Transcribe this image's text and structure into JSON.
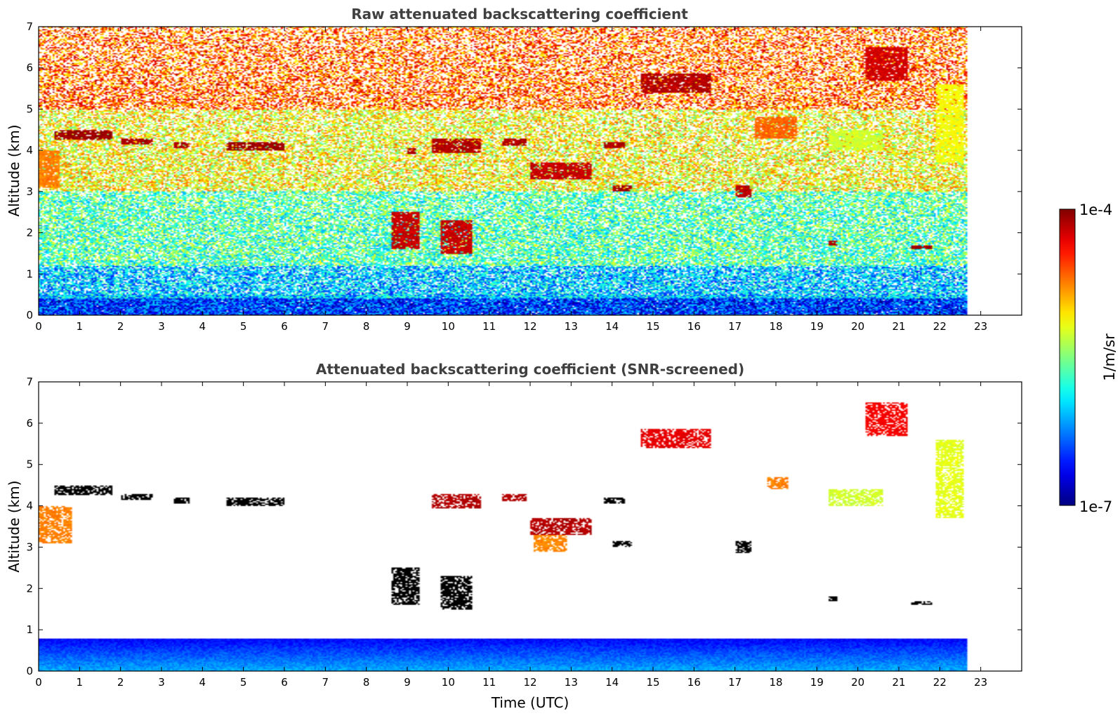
{
  "chart_data": [
    {
      "type": "heatmap",
      "title": "Raw attenuated backscattering coefficient",
      "xlabel": "",
      "ylabel": "Altitude (km)",
      "xlim": [
        0,
        24
      ],
      "ylim": [
        0,
        7
      ],
      "x_ticks": [
        "0",
        "1",
        "2",
        "3",
        "4",
        "5",
        "6",
        "7",
        "8",
        "9",
        "10",
        "11",
        "12",
        "13",
        "14",
        "15",
        "16",
        "17",
        "18",
        "19",
        "20",
        "21",
        "22",
        "23"
      ],
      "y_ticks": [
        "0",
        "1",
        "2",
        "3",
        "4",
        "5",
        "6",
        "7"
      ],
      "data_end_time": 22.65,
      "background_noise": [
        {
          "alt_range": [
            0,
            0.4
          ],
          "level": 0.18
        },
        {
          "alt_range": [
            0.4,
            1.2
          ],
          "level": 0.32
        },
        {
          "alt_range": [
            1.2,
            3.0
          ],
          "level": 0.45
        },
        {
          "alt_range": [
            3.0,
            5.0
          ],
          "level": 0.62
        },
        {
          "alt_range": [
            5.0,
            7.0
          ],
          "level": 0.78
        }
      ],
      "features": [
        {
          "t": [
            0.4,
            1.8
          ],
          "alt": [
            4.25,
            4.5
          ],
          "level": 0.97
        },
        {
          "t": [
            2.0,
            2.8
          ],
          "alt": [
            4.15,
            4.3
          ],
          "level": 0.96
        },
        {
          "t": [
            3.3,
            3.7
          ],
          "alt": [
            4.05,
            4.2
          ],
          "level": 0.96
        },
        {
          "t": [
            4.6,
            6.0
          ],
          "alt": [
            4.0,
            4.2
          ],
          "level": 0.97
        },
        {
          "t": [
            9.0,
            9.2
          ],
          "alt": [
            3.9,
            4.05
          ],
          "level": 0.95
        },
        {
          "t": [
            9.6,
            10.8
          ],
          "alt": [
            3.95,
            4.3
          ],
          "level": 0.95
        },
        {
          "t": [
            11.3,
            11.9
          ],
          "alt": [
            4.1,
            4.3
          ],
          "level": 0.95
        },
        {
          "t": [
            12.0,
            13.5
          ],
          "alt": [
            3.3,
            3.7
          ],
          "level": 0.93
        },
        {
          "t": [
            13.8,
            14.3
          ],
          "alt": [
            4.05,
            4.2
          ],
          "level": 0.95
        },
        {
          "t": [
            14.0,
            14.5
          ],
          "alt": [
            3.0,
            3.15
          ],
          "level": 0.96
        },
        {
          "t": [
            14.7,
            16.4
          ],
          "alt": [
            5.4,
            5.85
          ],
          "level": 0.95
        },
        {
          "t": [
            15.8,
            16.4
          ],
          "alt": [
            5.45,
            5.6
          ],
          "level": 0.95
        },
        {
          "t": [
            17.0,
            17.4
          ],
          "alt": [
            2.85,
            3.15
          ],
          "level": 0.94
        },
        {
          "t": [
            19.3,
            19.5
          ],
          "alt": [
            1.7,
            1.8
          ],
          "level": 0.96
        },
        {
          "t": [
            21.3,
            21.8
          ],
          "alt": [
            1.6,
            1.68
          ],
          "level": 0.97
        },
        {
          "t": [
            20.2,
            21.2
          ],
          "alt": [
            5.7,
            6.5
          ],
          "level": 0.92
        },
        {
          "t": [
            8.6,
            9.3
          ],
          "alt": [
            1.6,
            2.5
          ],
          "level": 0.93
        },
        {
          "t": [
            9.8,
            10.6
          ],
          "alt": [
            1.5,
            2.3
          ],
          "level": 0.93
        },
        {
          "t": [
            0.0,
            0.5
          ],
          "alt": [
            3.1,
            4.0
          ],
          "level": 0.75
        },
        {
          "t": [
            21.9,
            22.6
          ],
          "alt": [
            3.7,
            5.6
          ],
          "level": 0.62
        },
        {
          "t": [
            17.5,
            18.5
          ],
          "alt": [
            4.3,
            4.8
          ],
          "level": 0.78
        },
        {
          "t": [
            19.3,
            20.6
          ],
          "alt": [
            4.0,
            4.5
          ],
          "level": 0.58
        }
      ]
    },
    {
      "type": "heatmap",
      "title": "Attenuated backscattering coefficient (SNR-screened)",
      "xlabel": "Time (UTC)",
      "ylabel": "Altitude (km)",
      "xlim": [
        0,
        24
      ],
      "ylim": [
        0,
        7
      ],
      "x_ticks": [
        "0",
        "1",
        "2",
        "3",
        "4",
        "5",
        "6",
        "7",
        "8",
        "9",
        "10",
        "11",
        "12",
        "13",
        "14",
        "15",
        "16",
        "17",
        "18",
        "19",
        "20",
        "21",
        "22",
        "23"
      ],
      "y_ticks": [
        "0",
        "1",
        "2",
        "3",
        "4",
        "5",
        "6",
        "7"
      ],
      "data_end_time": 22.65,
      "boundary_layer_top_km": 0.8,
      "features": [
        {
          "t": [
            0.4,
            1.8
          ],
          "alt": [
            4.25,
            4.5
          ],
          "level": 1.0
        },
        {
          "t": [
            2.0,
            2.8
          ],
          "alt": [
            4.15,
            4.3
          ],
          "level": 1.0
        },
        {
          "t": [
            3.3,
            3.7
          ],
          "alt": [
            4.05,
            4.2
          ],
          "level": 1.0
        },
        {
          "t": [
            4.6,
            6.0
          ],
          "alt": [
            4.0,
            4.2
          ],
          "level": 1.0
        },
        {
          "t": [
            9.6,
            10.8
          ],
          "alt": [
            3.95,
            4.3
          ],
          "level": 0.95
        },
        {
          "t": [
            11.3,
            11.9
          ],
          "alt": [
            4.1,
            4.3
          ],
          "level": 0.95
        },
        {
          "t": [
            12.0,
            13.5
          ],
          "alt": [
            3.3,
            3.7
          ],
          "level": 0.95
        },
        {
          "t": [
            13.8,
            14.3
          ],
          "alt": [
            4.05,
            4.2
          ],
          "level": 1.0
        },
        {
          "t": [
            14.0,
            14.5
          ],
          "alt": [
            3.0,
            3.15
          ],
          "level": 1.0
        },
        {
          "t": [
            14.7,
            16.4
          ],
          "alt": [
            5.4,
            5.85
          ],
          "level": 0.9
        },
        {
          "t": [
            17.0,
            17.4
          ],
          "alt": [
            2.85,
            3.15
          ],
          "level": 1.0
        },
        {
          "t": [
            19.3,
            19.5
          ],
          "alt": [
            1.7,
            1.8
          ],
          "level": 1.0
        },
        {
          "t": [
            21.3,
            21.8
          ],
          "alt": [
            1.6,
            1.68
          ],
          "level": 1.0
        },
        {
          "t": [
            20.2,
            21.2
          ],
          "alt": [
            5.7,
            6.5
          ],
          "level": 0.88
        },
        {
          "t": [
            8.6,
            9.3
          ],
          "alt": [
            1.6,
            2.5
          ],
          "level": 1.0
        },
        {
          "t": [
            9.8,
            10.6
          ],
          "alt": [
            1.5,
            2.3
          ],
          "level": 1.0
        },
        {
          "t": [
            0.0,
            0.8
          ],
          "alt": [
            3.1,
            4.0
          ],
          "level": 0.75
        },
        {
          "t": [
            21.9,
            22.6
          ],
          "alt": [
            3.7,
            5.6
          ],
          "level": 0.6
        },
        {
          "t": [
            17.8,
            18.3
          ],
          "alt": [
            4.4,
            4.7
          ],
          "level": 0.75
        },
        {
          "t": [
            19.3,
            20.6
          ],
          "alt": [
            4.0,
            4.4
          ],
          "level": 0.58
        },
        {
          "t": [
            12.1,
            12.9
          ],
          "alt": [
            2.9,
            3.3
          ],
          "level": 0.74
        }
      ]
    }
  ],
  "colorbar": {
    "label": "1/m/sr",
    "max_label": "1e-4",
    "min_label": "1e-7",
    "colormap": "jet",
    "scale": "log",
    "range": [
      1e-07,
      0.0001
    ]
  }
}
